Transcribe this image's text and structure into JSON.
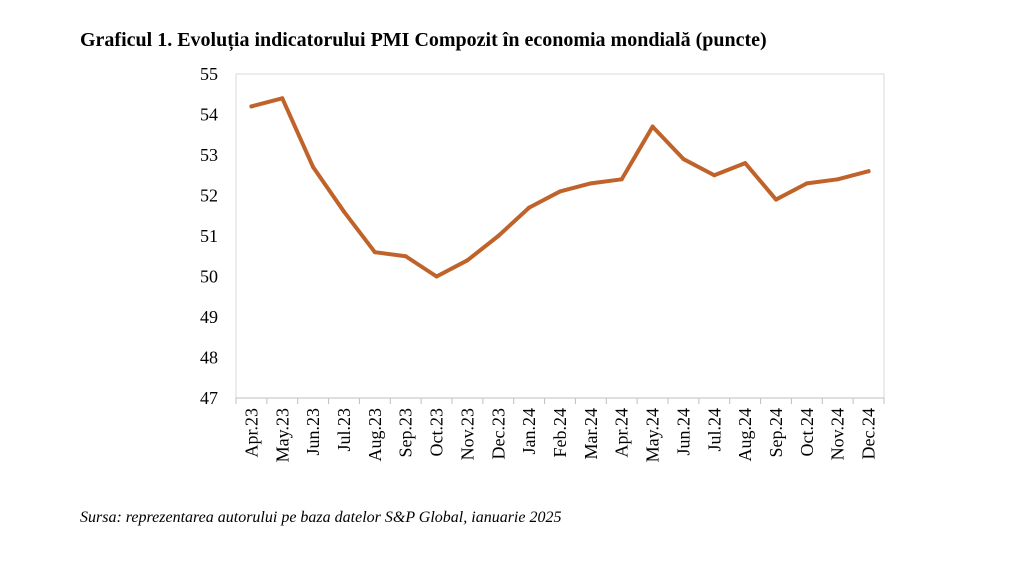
{
  "title": "Graficul 1. Evoluția indicatorului PMI Compozit în economia mondială (puncte)",
  "source": "Sursa: reprezentarea autorului pe baza datelor S&P Global, ianuarie 2025",
  "colors": {
    "line": "#c0632b",
    "frame": "#d9d9d9",
    "axis": "#bfbfbf"
  },
  "chart_data": {
    "type": "line",
    "title": "Graficul 1. Evoluția indicatorului PMI Compozit în economia mondială (puncte)",
    "xlabel": "",
    "ylabel": "",
    "ylim": [
      47,
      55
    ],
    "yticks": [
      "47",
      "48",
      "49",
      "50",
      "51",
      "52",
      "53",
      "54",
      "55"
    ],
    "grid": false,
    "legend": "none",
    "categories": [
      "Apr.23",
      "May.23",
      "Jun.23",
      "Jul.23",
      "Aug.23",
      "Sep.23",
      "Oct.23",
      "Nov.23",
      "Dec.23",
      "Jan.24",
      "Feb.24",
      "Mar.24",
      "Apr.24",
      "May.24",
      "Jun.24",
      "Jul.24",
      "Aug.24",
      "Sep.24",
      "Oct.24",
      "Nov.24",
      "Dec.24"
    ],
    "series": [
      {
        "values": [
          54.2,
          54.4,
          52.7,
          51.6,
          50.6,
          50.5,
          50.0,
          50.4,
          51.0,
          51.7,
          52.1,
          52.3,
          52.4,
          53.7,
          52.9,
          52.5,
          52.8,
          51.9,
          52.3,
          52.4,
          52.6
        ]
      }
    ]
  }
}
